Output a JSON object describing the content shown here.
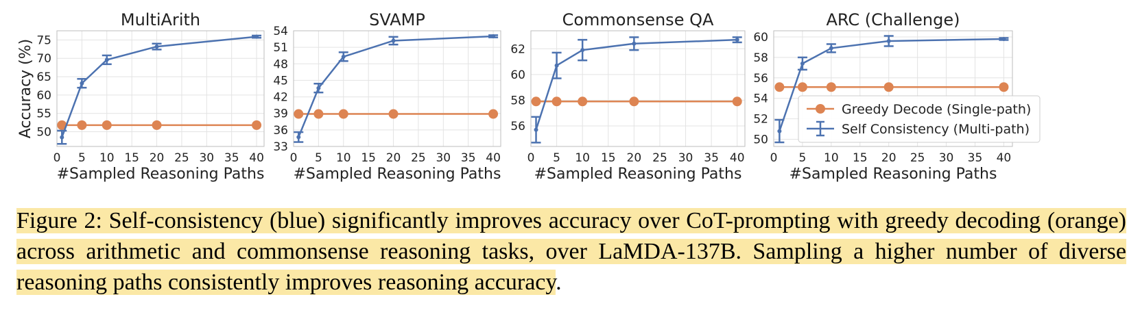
{
  "figure": {
    "legend_entries": [
      "Greedy Decode (Single-path)",
      "Self Consistency (Multi-path)"
    ],
    "colors": {
      "greedy": "#dd8452",
      "self_consistency": "#4c72b0",
      "grid": "#e3e3e3",
      "caption_highlight": "#fbe8a6"
    }
  },
  "chart_data": [
    {
      "type": "line",
      "title": "MultiArith",
      "xlabel": "#Sampled Reasoning Paths",
      "ylabel": "Accuracy (%)",
      "xlim": [
        0,
        41.5
      ],
      "ylim": [
        46,
        77.5
      ],
      "x_ticks": [
        0,
        5,
        10,
        15,
        20,
        25,
        30,
        35,
        40
      ],
      "y_ticks": [
        50,
        55,
        60,
        65,
        70,
        75
      ],
      "grid": true,
      "legend": "none",
      "series": [
        {
          "name": "Greedy Decode (Single-path)",
          "x": [
            1,
            5,
            10,
            20,
            40
          ],
          "y": [
            51.8,
            51.8,
            51.8,
            51.8,
            51.8
          ]
        },
        {
          "name": "Self Consistency (Multi-path)",
          "x": [
            1,
            5,
            10,
            20,
            40
          ],
          "y": [
            48.5,
            63.2,
            69.6,
            73.2,
            75.9
          ],
          "error": [
            1.8,
            1.2,
            1.2,
            0.8,
            0.3
          ]
        }
      ]
    },
    {
      "type": "line",
      "title": "SVAMP",
      "xlabel": "#Sampled Reasoning Paths",
      "ylabel": "",
      "xlim": [
        0,
        41.5
      ],
      "ylim": [
        33,
        54
      ],
      "x_ticks": [
        0,
        5,
        10,
        15,
        20,
        25,
        30,
        35,
        40
      ],
      "y_ticks": [
        33,
        36,
        39,
        42,
        45,
        48,
        51,
        54
      ],
      "grid": true,
      "legend": "none",
      "series": [
        {
          "name": "Greedy Decode (Single-path)",
          "x": [
            1,
            5,
            10,
            20,
            40
          ],
          "y": [
            38.9,
            38.9,
            38.9,
            38.9,
            38.9
          ]
        },
        {
          "name": "Self Consistency (Multi-path)",
          "x": [
            1,
            5,
            10,
            20,
            40
          ],
          "y": [
            34.7,
            43.6,
            49.3,
            52.2,
            53.0
          ],
          "error": [
            0.9,
            0.8,
            0.8,
            0.7,
            0.2
          ]
        }
      ]
    },
    {
      "type": "line",
      "title": "Commonsense QA",
      "xlabel": "#Sampled Reasoning Paths",
      "ylabel": "",
      "xlim": [
        0,
        41.5
      ],
      "ylim": [
        54.4,
        63.4
      ],
      "x_ticks": [
        0,
        5,
        10,
        15,
        20,
        25,
        30,
        35,
        40
      ],
      "y_ticks": [
        56,
        58,
        60,
        62
      ],
      "grid": true,
      "legend": "none",
      "series": [
        {
          "name": "Greedy Decode (Single-path)",
          "x": [
            1,
            5,
            10,
            20,
            40
          ],
          "y": [
            57.9,
            57.9,
            57.9,
            57.9,
            57.9
          ]
        },
        {
          "name": "Self Consistency (Multi-path)",
          "x": [
            1,
            5,
            10,
            20,
            40
          ],
          "y": [
            55.7,
            60.7,
            61.9,
            62.4,
            62.7
          ],
          "error": [
            1.0,
            1.0,
            0.8,
            0.5,
            0.2
          ]
        }
      ]
    },
    {
      "type": "line",
      "title": "ARC (Challenge)",
      "xlabel": "#Sampled Reasoning Paths",
      "ylabel": "",
      "xlim": [
        0,
        41.5
      ],
      "ylim": [
        49.3,
        60.6
      ],
      "x_ticks": [
        0,
        5,
        10,
        15,
        20,
        25,
        30,
        35,
        40
      ],
      "y_ticks": [
        50,
        52,
        54,
        56,
        58,
        60
      ],
      "grid": true,
      "legend": "lower-right",
      "series": [
        {
          "name": "Greedy Decode (Single-path)",
          "x": [
            1,
            5,
            10,
            20,
            40
          ],
          "y": [
            55.1,
            55.1,
            55.1,
            55.1,
            55.1
          ]
        },
        {
          "name": "Self Consistency (Multi-path)",
          "x": [
            1,
            5,
            10,
            20,
            40
          ],
          "y": [
            50.8,
            57.4,
            58.9,
            59.6,
            59.8
          ],
          "error": [
            1.1,
            0.6,
            0.4,
            0.5,
            0.1
          ]
        }
      ]
    }
  ],
  "caption": {
    "text": "Figure 2: Self-consistency (blue) significantly improves accuracy over CoT-prompting with greedy decoding (orange) across arithmetic and commonsense reasoning tasks, over LaMDA-137B. Sampling a higher number of diverse reasoning paths consistently improves reasoning accuracy",
    "trailing": "."
  }
}
